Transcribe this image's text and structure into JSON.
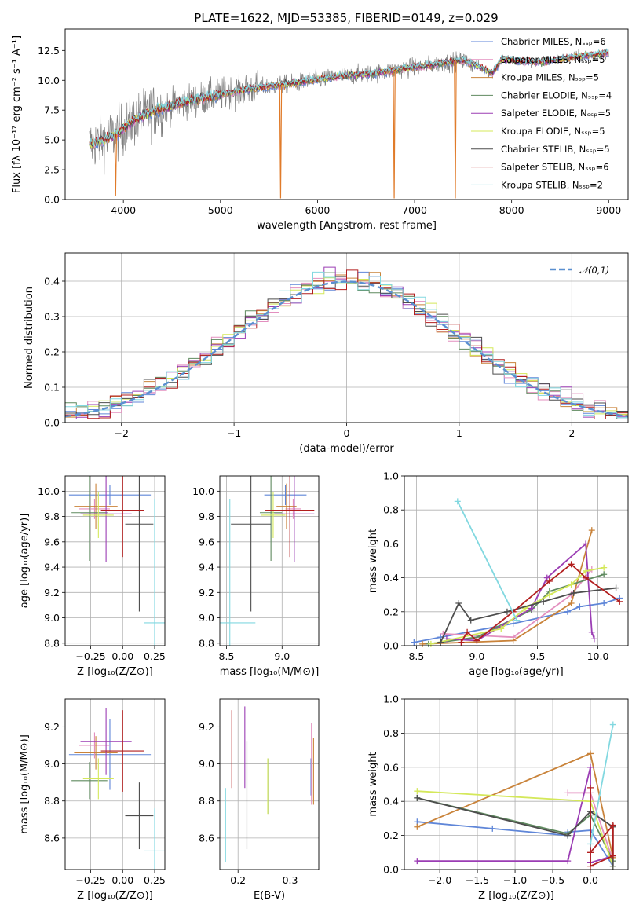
{
  "figure_title": "PLATE=1622, MJD=53385, FIBERID=0149, z=0.029",
  "colors": {
    "Chabrier MILES": "#5f86d8",
    "Salpeter MILES": "#e38fbf",
    "Kroupa MILES": "#c9833a",
    "Chabrier ELODIE": "#5f8a5f",
    "Salpeter ELODIE": "#9b3db4",
    "Kroupa ELODIE": "#d4e85a",
    "Chabrier STELIB": "#4d4d4d",
    "Salpeter STELIB": "#b21e1e",
    "Kroupa STELIB": "#82d8e0",
    "data": "#808080",
    "normal": "#5a8fd0",
    "orange": "#e07b2a"
  },
  "chart_data": [
    {
      "id": "spectrum",
      "type": "line",
      "title": "PLATE=1622, MJD=53385, FIBERID=0149, z=0.029",
      "xlabel": "wavelength [Angstrom, rest frame]",
      "ylabel": "Flux [fλ 10⁻¹⁷ erg cm⁻² s⁻¹ A⁻¹]",
      "xlim": [
        3400,
        9200
      ],
      "ylim": [
        0,
        14.3
      ],
      "xticks": [
        "4000",
        "5000",
        "6000",
        "7000",
        "8000",
        "9000"
      ],
      "yticks": [
        "0.0",
        "2.5",
        "5.0",
        "7.5",
        "10.0",
        "12.5"
      ],
      "legend": [
        "Chabrier MILES, Nₛₛₚ=6",
        "Salpeter MILES, Nₛₛₚ=5",
        "Kroupa MILES, Nₛₛₚ=5",
        "Chabrier ELODIE, Nₛₛₚ=4",
        "Salpeter ELODIE, Nₛₛₚ=5",
        "Kroupa ELODIE, Nₛₛₚ=5",
        "Chabrier STELIB, Nₛₛₚ=5",
        "Salpeter STELIB, Nₛₛₚ=6",
        "Kroupa STELIB, Nₛₛₚ=2"
      ],
      "legend_placement": "right",
      "continuum": {
        "x": [
          3650,
          3800,
          3950,
          4100,
          4300,
          4600,
          5000,
          5400,
          5800,
          6200,
          6600,
          6900,
          7200,
          7500,
          7650,
          7800,
          7900,
          8100,
          8300,
          8500,
          8700,
          9000
        ],
        "y": [
          4.6,
          5.0,
          5.6,
          6.6,
          7.4,
          8.1,
          8.8,
          9.4,
          9.8,
          10.3,
          10.6,
          11.0,
          11.3,
          11.7,
          11.2,
          10.6,
          11.8,
          11.6,
          11.5,
          11.8,
          12.0,
          12.3
        ]
      },
      "features": [
        {
          "x": 5620,
          "y": 0.1
        },
        {
          "x": 6790,
          "y": 0.1
        },
        {
          "x": 7420,
          "y": 0.1
        },
        {
          "x": 3920,
          "y": 0.3
        }
      ],
      "grid": false
    },
    {
      "id": "residuals",
      "type": "bar",
      "xlabel": "(data-model)/error",
      "ylabel": "Normed distribution",
      "xlim": [
        -2.5,
        2.5
      ],
      "ylim": [
        0,
        0.48
      ],
      "xticks": [
        "−2",
        "−1",
        "0",
        "1",
        "2"
      ],
      "yticks": [
        "0.0",
        "0.1",
        "0.2",
        "0.3",
        "0.4"
      ],
      "legend": [
        "𝒩(0,1)"
      ],
      "legend_placement": "top-right",
      "bin_width": 0.1,
      "grid": true
    },
    {
      "id": "age_vs_Z",
      "type": "scatter",
      "xlabel": "Z [log₁₀(Z/Z⊙)]",
      "ylabel": "age  [log₁₀(age/yr)]",
      "xlim": [
        -0.45,
        0.33
      ],
      "ylim": [
        8.78,
        10.12
      ],
      "xticks": [
        "−0.25",
        "0.00",
        "0.25"
      ],
      "yticks": [
        "8.8",
        "9.0",
        "9.2",
        "9.4",
        "9.6",
        "9.8",
        "10.0"
      ],
      "points": [
        {
          "s": "Chabrier MILES",
          "x": -0.1,
          "y": 9.97,
          "xe": 0.32,
          "ye": 0.08
        },
        {
          "s": "Salpeter MILES",
          "x": -0.22,
          "y": 9.86,
          "xe": 0.12,
          "ye": 0.08
        },
        {
          "s": "Kroupa MILES",
          "x": -0.21,
          "y": 9.88,
          "xe": 0.17,
          "ye": 0.18
        },
        {
          "s": "Chabrier ELODIE",
          "x": -0.26,
          "y": 9.83,
          "xe": 0.14,
          "ye": 0.38
        },
        {
          "s": "Salpeter ELODIE",
          "x": -0.13,
          "y": 9.82,
          "xe": 0.2,
          "ye": 0.38
        },
        {
          "s": "Kroupa ELODIE",
          "x": -0.19,
          "y": 9.81,
          "xe": 0.12,
          "ye": 0.18
        },
        {
          "s": "Chabrier STELIB",
          "x": 0.13,
          "y": 9.74,
          "xe": 0.11,
          "ye": 0.69
        },
        {
          "s": "Salpeter STELIB",
          "x": 0.0,
          "y": 9.85,
          "xe": 0.17,
          "ye": 0.37
        },
        {
          "s": "Kroupa STELIB",
          "x": 0.25,
          "y": 8.96,
          "xe": 0.08,
          "ye": 0.98
        }
      ],
      "grid": true
    },
    {
      "id": "age_vs_mass",
      "type": "scatter",
      "xlabel": "mass [log₁₀(M/M⊙)]",
      "ylabel": "",
      "xlim": [
        8.44,
        9.33
      ],
      "ylim": [
        8.78,
        10.12
      ],
      "xticks": [
        "8.5",
        "9.0"
      ],
      "yticks": [
        "8.8",
        "9.0",
        "9.2",
        "9.4",
        "9.6",
        "9.8",
        "10.0"
      ],
      "points": [
        {
          "s": "Chabrier MILES",
          "x": 9.03,
          "y": 9.97,
          "xe": 0.19,
          "ye": 0.08
        },
        {
          "s": "Salpeter MILES",
          "x": 9.1,
          "y": 9.86,
          "xe": 0.07,
          "ye": 0.08
        },
        {
          "s": "Kroupa MILES",
          "x": 9.04,
          "y": 9.88,
          "xe": 0.09,
          "ye": 0.18
        },
        {
          "s": "Chabrier ELODIE",
          "x": 8.9,
          "y": 9.83,
          "xe": 0.1,
          "ye": 0.38
        },
        {
          "s": "Salpeter ELODIE",
          "x": 9.11,
          "y": 9.82,
          "xe": 0.18,
          "ye": 0.38
        },
        {
          "s": "Kroupa ELODIE",
          "x": 8.92,
          "y": 9.81,
          "xe": 0.11,
          "ye": 0.18
        },
        {
          "s": "Chabrier STELIB",
          "x": 8.72,
          "y": 9.74,
          "xe": 0.18,
          "ye": 0.69
        },
        {
          "s": "Salpeter STELIB",
          "x": 9.07,
          "y": 9.85,
          "xe": 0.22,
          "ye": 0.37
        },
        {
          "s": "Kroupa STELIB",
          "x": 8.53,
          "y": 8.96,
          "xe": 0.23,
          "ye": 0.98
        }
      ],
      "grid": true
    },
    {
      "id": "massweight_vs_age",
      "type": "line",
      "xlabel": "age  [log₁₀(age/yr)]",
      "ylabel": "mass weight",
      "xlim": [
        8.4,
        10.25
      ],
      "ylim": [
        0,
        1.0
      ],
      "xticks": [
        "8.5",
        "9.0",
        "9.5",
        "10.0"
      ],
      "yticks": [
        "0.0",
        "0.2",
        "0.4",
        "0.6",
        "0.8",
        "1.0"
      ],
      "series": [
        {
          "name": "Chabrier MILES",
          "x": [
            8.48,
            8.7,
            9.3,
            9.75,
            9.85,
            10.05,
            10.18
          ],
          "y": [
            0.02,
            0.05,
            0.13,
            0.2,
            0.23,
            0.25,
            0.28
          ]
        },
        {
          "name": "Salpeter MILES",
          "x": [
            8.72,
            9.3,
            9.78,
            9.95
          ],
          "y": [
            0.07,
            0.05,
            0.3,
            0.45
          ]
        },
        {
          "name": "Kroupa MILES",
          "x": [
            8.55,
            9.3,
            9.78,
            9.95
          ],
          "y": [
            0.01,
            0.03,
            0.25,
            0.68
          ]
        },
        {
          "name": "Chabrier ELODIE",
          "x": [
            8.6,
            9.0,
            9.45,
            9.6,
            10.05
          ],
          "y": [
            0.01,
            0.05,
            0.21,
            0.32,
            0.42
          ]
        },
        {
          "name": "Salpeter ELODIE",
          "x": [
            8.75,
            9.0,
            9.45,
            9.58,
            9.9,
            9.95,
            9.97
          ],
          "y": [
            0.04,
            0.03,
            0.22,
            0.4,
            0.6,
            0.08,
            0.04
          ]
        },
        {
          "name": "Kroupa ELODIE",
          "x": [
            8.62,
            9.2,
            9.4,
            9.6,
            9.78,
            9.9,
            10.05
          ],
          "y": [
            0.01,
            0.1,
            0.22,
            0.3,
            0.36,
            0.44,
            0.46
          ]
        },
        {
          "name": "Chabrier STELIB",
          "x": [
            8.7,
            8.85,
            8.95,
            9.25,
            9.55,
            9.8,
            10.15
          ],
          "y": [
            0.02,
            0.25,
            0.15,
            0.2,
            0.26,
            0.31,
            0.34
          ]
        },
        {
          "name": "Salpeter STELIB",
          "x": [
            8.87,
            8.92,
            9.0,
            9.3,
            9.6,
            9.78,
            9.9,
            10.18
          ],
          "y": [
            0.02,
            0.08,
            0.03,
            0.2,
            0.38,
            0.48,
            0.4,
            0.26
          ]
        },
        {
          "name": "Kroupa STELIB",
          "x": [
            8.84,
            9.33
          ],
          "y": [
            0.85,
            0.15
          ]
        }
      ],
      "grid": true
    },
    {
      "id": "mass_vs_Z",
      "type": "scatter",
      "xlabel": "Z [log₁₀(Z/Z⊙)]",
      "ylabel": "mass [log₁₀(M/M⊙)]",
      "xlim": [
        -0.45,
        0.33
      ],
      "ylim": [
        8.43,
        9.35
      ],
      "xticks": [
        "−0.25",
        "0.00",
        "0.25"
      ],
      "yticks": [
        "8.6",
        "8.8",
        "9.0",
        "9.2"
      ],
      "points": [
        {
          "s": "Chabrier MILES",
          "x": -0.1,
          "y": 9.05,
          "xe": 0.32,
          "ye": 0.19
        },
        {
          "s": "Salpeter MILES",
          "x": -0.22,
          "y": 9.1,
          "xe": 0.12,
          "ye": 0.07
        },
        {
          "s": "Kroupa MILES",
          "x": -0.21,
          "y": 9.06,
          "xe": 0.17,
          "ye": 0.09
        },
        {
          "s": "Chabrier ELODIE",
          "x": -0.26,
          "y": 8.91,
          "xe": 0.14,
          "ye": 0.1
        },
        {
          "s": "Salpeter ELODIE",
          "x": -0.13,
          "y": 9.12,
          "xe": 0.2,
          "ye": 0.18
        },
        {
          "s": "Kroupa ELODIE",
          "x": -0.19,
          "y": 8.92,
          "xe": 0.12,
          "ye": 0.11
        },
        {
          "s": "Chabrier STELIB",
          "x": 0.13,
          "y": 8.72,
          "xe": 0.11,
          "ye": 0.18
        },
        {
          "s": "Salpeter STELIB",
          "x": 0.0,
          "y": 9.07,
          "xe": 0.17,
          "ye": 0.22
        },
        {
          "s": "Kroupa STELIB",
          "x": 0.25,
          "y": 8.53,
          "xe": 0.08,
          "ye": 0.23
        }
      ],
      "grid": true
    },
    {
      "id": "mass_vs_ebv",
      "type": "scatter",
      "xlabel": "E(B-V)",
      "ylabel": "",
      "xlim": [
        0.165,
        0.355
      ],
      "ylim": [
        8.43,
        9.35
      ],
      "xticks": [
        "0.2",
        "0.3"
      ],
      "yticks": [
        "8.6",
        "8.8",
        "9.0",
        "9.2"
      ],
      "points": [
        {
          "s": "Chabrier MILES",
          "x": 0.34,
          "y": 8.93,
          "xe": 0,
          "ye": 0.1
        },
        {
          "s": "Salpeter MILES",
          "x": 0.341,
          "y": 9.0,
          "xe": 0,
          "ye": 0.22
        },
        {
          "s": "Kroupa MILES",
          "x": 0.345,
          "y": 8.96,
          "xe": 0,
          "ye": 0.18
        },
        {
          "s": "Chabrier ELODIE",
          "x": 0.259,
          "y": 8.88,
          "xe": 0,
          "ye": 0.15
        },
        {
          "s": "Salpeter ELODIE",
          "x": 0.213,
          "y": 9.09,
          "xe": 0,
          "ye": 0.22
        },
        {
          "s": "Kroupa ELODIE",
          "x": 0.257,
          "y": 8.88,
          "xe": 0,
          "ye": 0.15
        },
        {
          "s": "Chabrier STELIB",
          "x": 0.217,
          "y": 8.83,
          "xe": 0,
          "ye": 0.29
        },
        {
          "s": "Salpeter STELIB",
          "x": 0.188,
          "y": 9.08,
          "xe": 0,
          "ye": 0.21
        },
        {
          "s": "Kroupa STELIB",
          "x": 0.176,
          "y": 8.67,
          "xe": 0,
          "ye": 0.2
        }
      ],
      "grid": true
    },
    {
      "id": "massweight_vs_Z",
      "type": "line",
      "xlabel": "Z [log₁₀(Z/Z⊙)]",
      "ylabel": "mass weight",
      "xlim": [
        -2.47,
        0.5
      ],
      "ylim": [
        0,
        1.0
      ],
      "xticks": [
        "−2.0",
        "−1.5",
        "−1.0",
        "−0.5",
        "0.0"
      ],
      "yticks": [
        "0.0",
        "0.2",
        "0.4",
        "0.6",
        "0.8",
        "1.0"
      ],
      "series": [
        {
          "name": "Chabrier MILES",
          "x": [
            -2.3,
            -1.3,
            -0.3,
            -0.3,
            0.0,
            0.3
          ],
          "y": [
            0.28,
            0.24,
            0.2,
            0.22,
            0.23,
            0.02
          ]
        },
        {
          "name": "Salpeter MILES",
          "x": [
            -0.3,
            0.0,
            0.3
          ],
          "y": [
            0.45,
            0.45,
            0.05
          ]
        },
        {
          "name": "Kroupa MILES",
          "x": [
            -2.3,
            0.0,
            0.3
          ],
          "y": [
            0.25,
            0.68,
            0.07
          ]
        },
        {
          "name": "Chabrier ELODIE",
          "x": [
            -2.3,
            -0.3,
            0.0,
            0.3
          ],
          "y": [
            0.42,
            0.21,
            0.32,
            0.05
          ]
        },
        {
          "name": "Salpeter ELODIE",
          "x": [
            -2.3,
            -0.3,
            0.0,
            0.0,
            0.3
          ],
          "y": [
            0.05,
            0.05,
            0.6,
            0.04,
            0.08
          ]
        },
        {
          "name": "Kroupa ELODIE",
          "x": [
            -2.3,
            0.0,
            0.3
          ],
          "y": [
            0.46,
            0.4,
            0.02
          ]
        },
        {
          "name": "Chabrier STELIB",
          "x": [
            -2.3,
            -0.3,
            0.0,
            0.3,
            0.3
          ],
          "y": [
            0.42,
            0.2,
            0.34,
            0.25,
            0.02
          ]
        },
        {
          "name": "Salpeter STELIB",
          "x": [
            0.0,
            0.0,
            0.3,
            0.3,
            0.0
          ],
          "y": [
            0.48,
            0.02,
            0.08,
            0.26,
            0.1
          ]
        },
        {
          "name": "Kroupa STELIB",
          "x": [
            0.0,
            0.3
          ],
          "y": [
            0.15,
            0.85
          ]
        }
      ],
      "grid": true
    }
  ]
}
